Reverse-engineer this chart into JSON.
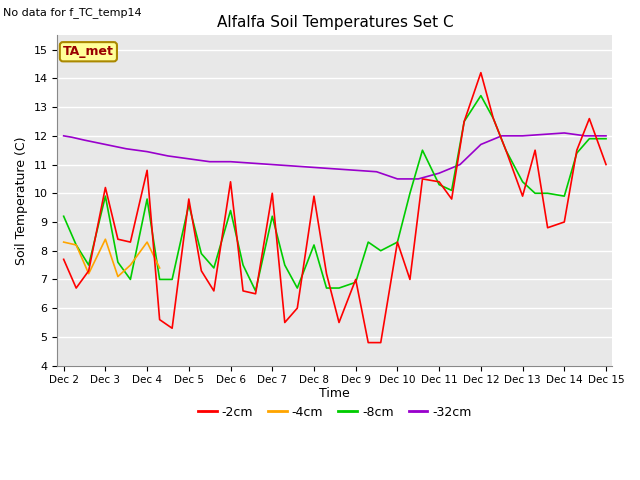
{
  "title": "Alfalfa Soil Temperatures Set C",
  "subtitle": "No data for f_TC_temp14",
  "xlabel": "Time",
  "ylabel": "Soil Temperature (C)",
  "ylim": [
    4.0,
    15.5
  ],
  "yticks": [
    4.0,
    5.0,
    6.0,
    7.0,
    8.0,
    9.0,
    10.0,
    11.0,
    12.0,
    13.0,
    14.0,
    15.0
  ],
  "bg_color": "#e8e8e8",
  "grid_color": "#ffffff",
  "fig_bg_color": "#ffffff",
  "legend_label": "TA_met",
  "series": {
    "2cm": {
      "color": "#ff0000",
      "label": "-2cm",
      "x": [
        0,
        0.3,
        0.6,
        1.0,
        1.3,
        1.6,
        2.0,
        2.3,
        2.6,
        3.0,
        3.3,
        3.6,
        4.0,
        4.3,
        4.6,
        5.0,
        5.3,
        5.6,
        6.0,
        6.3,
        6.6,
        7.0,
        7.3,
        7.6,
        8.0,
        8.3,
        8.6,
        9.0,
        9.3,
        9.6,
        10.0,
        10.3,
        10.6,
        11.0,
        11.3,
        11.6,
        12.0,
        12.3,
        12.6,
        13.0
      ],
      "y": [
        7.7,
        6.7,
        7.3,
        10.2,
        8.4,
        8.3,
        10.8,
        5.6,
        5.3,
        9.8,
        7.3,
        6.6,
        10.4,
        6.6,
        6.5,
        10.0,
        5.5,
        6.0,
        9.9,
        7.2,
        5.5,
        7.0,
        4.8,
        4.8,
        8.3,
        7.0,
        10.5,
        10.4,
        9.8,
        12.5,
        14.2,
        12.6,
        11.5,
        9.9,
        11.5,
        8.8,
        9.0,
        11.5,
        12.6,
        11.0
      ]
    },
    "4cm": {
      "color": "#ffa500",
      "label": "-4cm",
      "x": [
        0,
        0.3,
        0.6,
        1.0,
        1.3,
        1.6,
        2.0,
        2.3
      ],
      "y": [
        8.3,
        8.2,
        7.2,
        8.4,
        7.1,
        7.5,
        8.3,
        7.4
      ]
    },
    "8cm": {
      "color": "#00cc00",
      "label": "-8cm",
      "x": [
        0,
        0.3,
        0.6,
        1.0,
        1.3,
        1.6,
        2.0,
        2.3,
        2.6,
        3.0,
        3.3,
        3.6,
        4.0,
        4.3,
        4.6,
        5.0,
        5.3,
        5.6,
        6.0,
        6.3,
        6.6,
        7.0,
        7.3,
        7.6,
        8.0,
        8.3,
        8.6,
        9.0,
        9.3,
        9.6,
        10.0,
        10.3,
        10.6,
        11.0,
        11.3,
        11.6,
        12.0,
        12.3,
        12.6,
        13.0
      ],
      "y": [
        9.2,
        8.2,
        7.5,
        9.9,
        7.6,
        7.0,
        9.8,
        7.0,
        7.0,
        9.6,
        7.9,
        7.4,
        9.4,
        7.5,
        6.6,
        9.2,
        7.5,
        6.7,
        8.2,
        6.7,
        6.7,
        6.9,
        8.3,
        8.0,
        8.3,
        10.0,
        11.5,
        10.3,
        10.1,
        12.5,
        13.4,
        12.6,
        11.5,
        10.4,
        10.0,
        10.0,
        9.9,
        11.4,
        11.9,
        11.9
      ]
    },
    "32cm": {
      "color": "#9900cc",
      "label": "-32cm",
      "x": [
        0,
        0.2,
        0.5,
        1.0,
        1.5,
        2.0,
        2.5,
        3.0,
        3.5,
        4.0,
        4.5,
        5.0,
        5.5,
        6.0,
        6.5,
        7.0,
        7.5,
        8.0,
        8.5,
        9.0,
        9.5,
        10.0,
        10.5,
        11.0,
        11.5,
        12.0,
        12.5,
        13.0
      ],
      "y": [
        12.0,
        11.95,
        11.85,
        11.7,
        11.55,
        11.45,
        11.3,
        11.2,
        11.1,
        11.1,
        11.05,
        11.0,
        10.95,
        10.9,
        10.85,
        10.8,
        10.75,
        10.5,
        10.5,
        10.7,
        11.0,
        11.7,
        12.0,
        12.0,
        12.05,
        12.1,
        12.0,
        12.0
      ]
    }
  }
}
